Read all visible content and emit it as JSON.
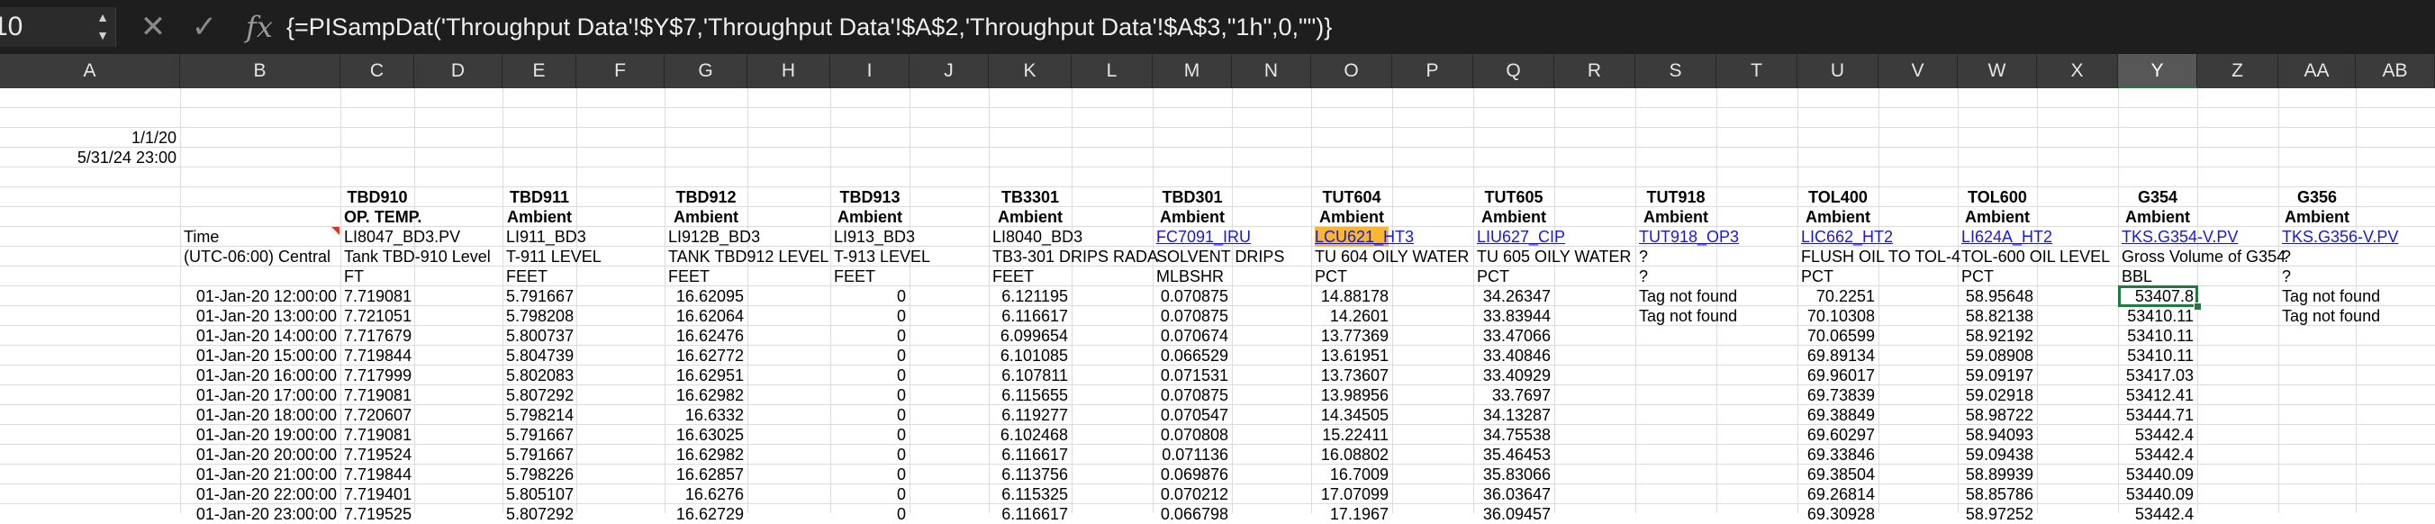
{
  "formula_bar": {
    "name_box": "10",
    "cancel_icon": "close-icon",
    "confirm_icon": "check-icon",
    "fx_label": "fx",
    "formula": "{=PISampDat('Throughput Data'!$Y$7,'Throughput Data'!$A$2,'Throughput Data'!$A$3,\"1h\",0,\"\")}"
  },
  "columns": [
    "A",
    "B",
    "C",
    "D",
    "E",
    "F",
    "G",
    "H",
    "I",
    "J",
    "K",
    "L",
    "M",
    "N",
    "O",
    "P",
    "Q",
    "R",
    "S",
    "T",
    "U",
    "V",
    "W",
    "X",
    "Y",
    "Z",
    "AA",
    "AB"
  ],
  "selected_column": "Y",
  "selected_cell_value": "53407.8",
  "date_start": "1/1/20",
  "date_end": "5/31/24 23:00",
  "headers": {
    "names": [
      "TBD910",
      "TBD911",
      "TBD912",
      "TBD913",
      "TB3301",
      "TBD301",
      "TUT604",
      "TUT605",
      "TUT918",
      "TOL400",
      "TOL600",
      "G354",
      "G356"
    ],
    "types": [
      "OP. TEMP.",
      "Ambient",
      "Ambient",
      "Ambient",
      "Ambient",
      "Ambient",
      "Ambient",
      "Ambient",
      "Ambient",
      "Ambient",
      "Ambient",
      "Ambient",
      "Ambient"
    ],
    "time_label": "Time",
    "tz_label": "(UTC-06:00) Central",
    "tags": [
      "LI8047_BD3.PV",
      "LI911_BD3",
      "LI912B_BD3",
      "LI913_BD3",
      "LI8040_BD3",
      "FC7091_IRU",
      "LCU621_HT3",
      "LIU627_CIP",
      "TUT918_OP3",
      "LIC662_HT2",
      "LI624A_HT2",
      "TKS.G354-V.PV",
      "TKS.G356-V.PV"
    ],
    "descriptions": [
      "Tank TBD-910 Level",
      "T-911 LEVEL",
      "TANK TBD912 LEVEL",
      "T-913 LEVEL",
      "TB3-301 DRIPS RADA",
      "SOLVENT DRIPS",
      "TU 604 OILY WATER",
      "TU 605 OILY WATER",
      "?",
      "FLUSH OIL TO TOL-4",
      "TOL-600 OIL LEVEL",
      "Gross Volume of G354",
      "?"
    ],
    "units": [
      "FT",
      "FEET",
      "FEET",
      "FEET",
      "FEET",
      "MLBSHR",
      "PCT",
      "PCT",
      "?",
      "PCT",
      "PCT",
      "BBL",
      "?"
    ]
  },
  "rows": [
    {
      "time": "01-Jan-20 12:00:00",
      "c": "7.719081",
      "e": "5.791667",
      "g": "16.62095",
      "i": "0",
      "k": "6.121195",
      "m": "0.070875",
      "o": "14.88178",
      "q": "34.26347",
      "s": "Tag not found",
      "u": "70.2251",
      "w": "58.95648",
      "y": "53407.8",
      "aa": "Tag not found"
    },
    {
      "time": "01-Jan-20 13:00:00",
      "c": "7.721051",
      "e": "5.798208",
      "g": "16.62064",
      "i": "0",
      "k": "6.116617",
      "m": "0.070875",
      "o": "14.2601",
      "q": "33.83944",
      "s": "Tag not found",
      "u": "70.10308",
      "w": "58.82138",
      "y": "53410.11",
      "aa": "Tag not found"
    },
    {
      "time": "01-Jan-20 14:00:00",
      "c": "7.717679",
      "e": "5.800737",
      "g": "16.62476",
      "i": "0",
      "k": "6.099654",
      "m": "0.070674",
      "o": "13.77369",
      "q": "33.47066",
      "s": "",
      "u": "70.06599",
      "w": "58.92192",
      "y": "53410.11",
      "aa": ""
    },
    {
      "time": "01-Jan-20 15:00:00",
      "c": "7.719844",
      "e": "5.804739",
      "g": "16.62772",
      "i": "0",
      "k": "6.101085",
      "m": "0.066529",
      "o": "13.61951",
      "q": "33.40846",
      "s": "",
      "u": "69.89134",
      "w": "59.08908",
      "y": "53410.11",
      "aa": ""
    },
    {
      "time": "01-Jan-20 16:00:00",
      "c": "7.717999",
      "e": "5.802083",
      "g": "16.62951",
      "i": "0",
      "k": "6.107811",
      "m": "0.071531",
      "o": "13.73607",
      "q": "33.40929",
      "s": "",
      "u": "69.96017",
      "w": "59.09197",
      "y": "53417.03",
      "aa": ""
    },
    {
      "time": "01-Jan-20 17:00:00",
      "c": "7.719081",
      "e": "5.807292",
      "g": "16.62982",
      "i": "0",
      "k": "6.115655",
      "m": "0.070875",
      "o": "13.98956",
      "q": "33.7697",
      "s": "",
      "u": "69.73839",
      "w": "59.02918",
      "y": "53412.41",
      "aa": ""
    },
    {
      "time": "01-Jan-20 18:00:00",
      "c": "7.720607",
      "e": "5.798214",
      "g": "16.6332",
      "i": "0",
      "k": "6.119277",
      "m": "0.070547",
      "o": "14.34505",
      "q": "34.13287",
      "s": "",
      "u": "69.38849",
      "w": "58.98722",
      "y": "53444.71",
      "aa": ""
    },
    {
      "time": "01-Jan-20 19:00:00",
      "c": "7.719081",
      "e": "5.791667",
      "g": "16.63025",
      "i": "0",
      "k": "6.102468",
      "m": "0.070808",
      "o": "15.22411",
      "q": "34.75538",
      "s": "",
      "u": "69.60297",
      "w": "58.94093",
      "y": "53442.4",
      "aa": ""
    },
    {
      "time": "01-Jan-20 20:00:00",
      "c": "7.719524",
      "e": "5.791667",
      "g": "16.62982",
      "i": "0",
      "k": "6.116617",
      "m": "0.071136",
      "o": "16.08802",
      "q": "35.46453",
      "s": "",
      "u": "69.33846",
      "w": "59.09438",
      "y": "53442.4",
      "aa": ""
    },
    {
      "time": "01-Jan-20 21:00:00",
      "c": "7.719844",
      "e": "5.798226",
      "g": "16.62857",
      "i": "0",
      "k": "6.113756",
      "m": "0.069876",
      "o": "16.7009",
      "q": "35.83066",
      "s": "",
      "u": "69.38504",
      "w": "58.89939",
      "y": "53440.09",
      "aa": ""
    },
    {
      "time": "01-Jan-20 22:00:00",
      "c": "7.719401",
      "e": "5.805107",
      "g": "16.6276",
      "i": "0",
      "k": "6.115325",
      "m": "0.070212",
      "o": "17.07099",
      "q": "36.03647",
      "s": "",
      "u": "69.26814",
      "w": "58.85786",
      "y": "53440.09",
      "aa": ""
    },
    {
      "time": "01-Jan-20 23:00:00",
      "c": "7.719525",
      "e": "5.807292",
      "g": "16.62729",
      "i": "0",
      "k": "6.116617",
      "m": "0.066798",
      "o": "17.1967",
      "q": "36.09457",
      "s": "",
      "u": "69.30928",
      "w": "58.97252",
      "y": "53442.4",
      "aa": ""
    }
  ]
}
